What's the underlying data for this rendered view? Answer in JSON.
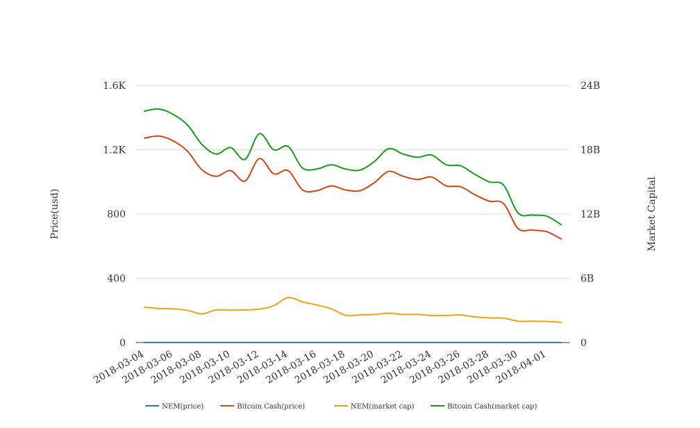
{
  "chart_data": {
    "type": "line",
    "x": [
      "2018-03-04",
      "2018-03-05",
      "2018-03-06",
      "2018-03-07",
      "2018-03-08",
      "2018-03-09",
      "2018-03-10",
      "2018-03-11",
      "2018-03-12",
      "2018-03-13",
      "2018-03-14",
      "2018-03-15",
      "2018-03-16",
      "2018-03-17",
      "2018-03-18",
      "2018-03-19",
      "2018-03-20",
      "2018-03-21",
      "2018-03-22",
      "2018-03-23",
      "2018-03-24",
      "2018-03-25",
      "2018-03-26",
      "2018-03-27",
      "2018-03-28",
      "2018-03-29",
      "2018-03-30",
      "2018-03-31",
      "2018-04-01",
      "2018-04-02"
    ],
    "x_tick_labels": [
      "2018-03-04",
      "2018-03-06",
      "2018-03-08",
      "2018-03-10",
      "2018-03-12",
      "2018-03-14",
      "2018-03-16",
      "2018-03-18",
      "2018-03-20",
      "2018-03-22",
      "2018-03-24",
      "2018-03-26",
      "2018-03-28",
      "2018-03-30",
      "2018-04-01"
    ],
    "ylabel": "Price(usd)",
    "y2label": "Market Capital",
    "ylim": [
      0,
      1600
    ],
    "y2lim": [
      0,
      24000000000
    ],
    "y_ticks": [
      0,
      400,
      800,
      1200,
      1600
    ],
    "y_tick_labels": [
      "0",
      "400",
      "800",
      "1.2K",
      "1.6K"
    ],
    "y2_ticks": [
      0,
      6000000000,
      12000000000,
      18000000000,
      24000000000
    ],
    "y2_tick_labels": [
      "0",
      "6B",
      "12B",
      "18B",
      "24B"
    ],
    "grid": true,
    "legend_position": "bottom",
    "series": [
      {
        "name": "NEM(price)",
        "axis": "left",
        "color": "#2e75b6",
        "values": [
          0.37,
          0.36,
          0.35,
          0.34,
          0.32,
          0.33,
          0.33,
          0.33,
          0.34,
          0.36,
          0.4,
          0.37,
          0.35,
          0.33,
          0.27,
          0.27,
          0.28,
          0.29,
          0.28,
          0.28,
          0.27,
          0.27,
          0.27,
          0.26,
          0.25,
          0.25,
          0.22,
          0.22,
          0.22,
          0.21
        ]
      },
      {
        "name": "Bitcoin Cash(price)",
        "axis": "left",
        "color": "#d84315",
        "values": [
          1272,
          1285,
          1255,
          1190,
          1075,
          1035,
          1070,
          1005,
          1145,
          1050,
          1070,
          950,
          945,
          975,
          950,
          945,
          995,
          1065,
          1035,
          1015,
          1030,
          975,
          970,
          920,
          880,
          865,
          710,
          700,
          690,
          645
        ]
      },
      {
        "name": "NEM(market cap)",
        "axis": "right",
        "color": "#f0a30a",
        "values": [
          3300000000,
          3180000000,
          3150000000,
          3000000000,
          2680000000,
          3050000000,
          3030000000,
          3050000000,
          3120000000,
          3450000000,
          4200000000,
          3800000000,
          3500000000,
          3150000000,
          2550000000,
          2580000000,
          2620000000,
          2730000000,
          2630000000,
          2630000000,
          2530000000,
          2530000000,
          2580000000,
          2400000000,
          2300000000,
          2280000000,
          2000000000,
          2000000000,
          1970000000,
          1900000000
        ]
      },
      {
        "name": "Bitcoin Cash(market cap)",
        "axis": "right",
        "color": "#1a9a1a",
        "values": [
          21600000000,
          21800000000,
          21300000000,
          20300000000,
          18500000000,
          17600000000,
          18200000000,
          17100000000,
          19500000000,
          18000000000,
          18300000000,
          16300000000,
          16200000000,
          16600000000,
          16200000000,
          16100000000,
          16900000000,
          18100000000,
          17600000000,
          17300000000,
          17500000000,
          16600000000,
          16500000000,
          15700000000,
          15000000000,
          14700000000,
          12100000000,
          11900000000,
          11800000000,
          11000000000
        ]
      }
    ]
  }
}
